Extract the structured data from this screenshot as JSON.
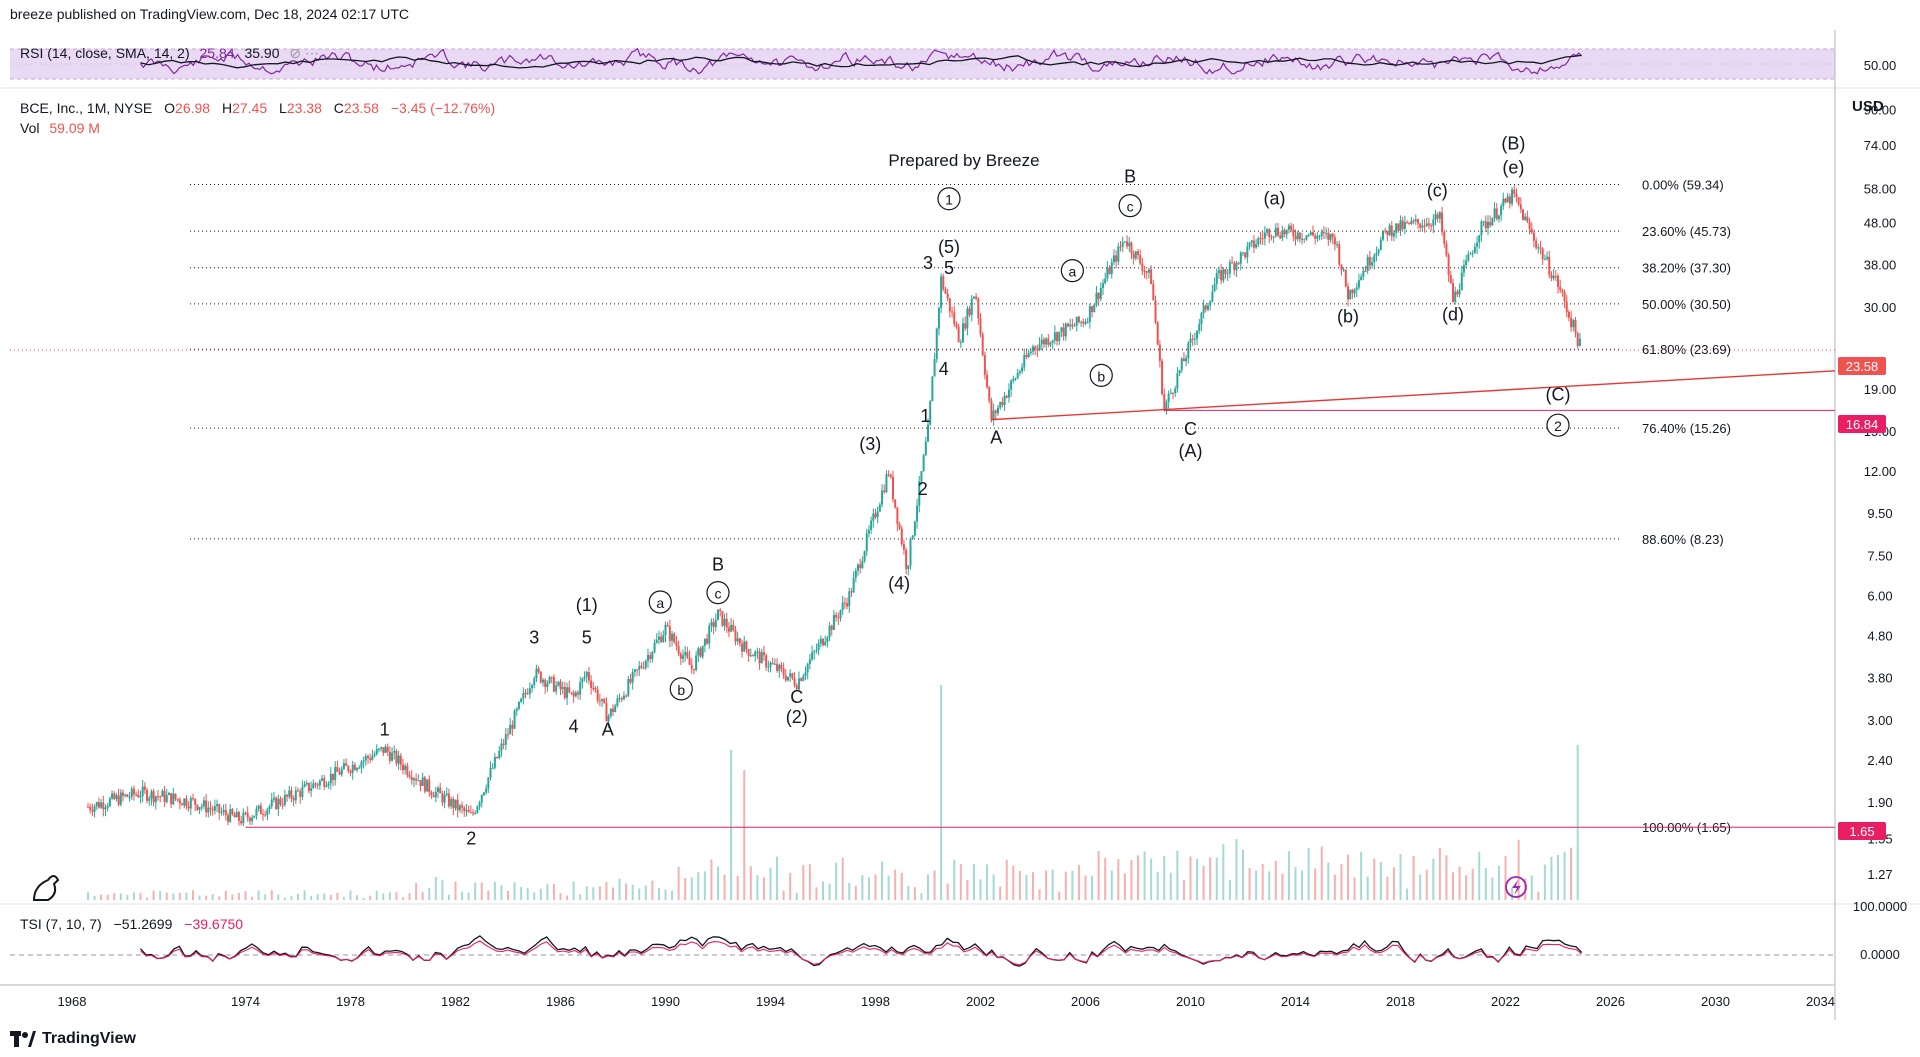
{
  "header": {
    "text": "breeze published on TradingView.com, Dec 18, 2024 02:17 UTC"
  },
  "rsi": {
    "label": "RSI (14, close, SMA, 14, 2)",
    "v1": "25.84",
    "v2": "35.90",
    "axis_label": "50.00",
    "line_color": "#7e2a9c",
    "band_color": "#e9d9f4"
  },
  "main": {
    "symbol": "BCE, Inc., 1M, NYSE",
    "o_label": "O",
    "o_value": "26.98",
    "h_label": "H",
    "h_value": "27.45",
    "l_label": "L",
    "l_value": "23.38",
    "c_label": "C",
    "c_value": "23.58",
    "change": "−3.45 (−12.76%)",
    "vol_label": "Vol",
    "vol_value": "59.09 M",
    "currency": "USD",
    "title_note": "Prepared by Breeze",
    "price_label": "23.58",
    "support_label": "16.84",
    "base_label": "1.65",
    "up_color": "#26a69a",
    "down_color": "#ef5350",
    "trend_color": "#e53935",
    "level_color": "#e91e63"
  },
  "tsi": {
    "label": "TSI (7, 10, 7)",
    "v1": "−51.2699",
    "v2": "−39.6750",
    "axis_top": "100.0000",
    "axis_mid": "0.0000"
  },
  "footer": {
    "brand": "TradingView"
  },
  "chart_data": {
    "type": "line",
    "scale": "log",
    "x_ticks": [
      "1968",
      "1974",
      "1978",
      "1982",
      "1986",
      "1990",
      "1994",
      "1998",
      "2002",
      "2006",
      "2010",
      "2014",
      "2018",
      "2022",
      "2026",
      "2030",
      "2034"
    ],
    "y_ticks": [
      "90.00",
      "74.00",
      "58.00",
      "48.00",
      "38.00",
      "30.00",
      "23.58",
      "19.00",
      "16.84",
      "15.00",
      "12.00",
      "9.50",
      "7.50",
      "6.00",
      "4.80",
      "3.80",
      "3.00",
      "2.40",
      "1.90",
      "1.65",
      "1.55",
      "1.27"
    ],
    "ylim": [
      1.1,
      95
    ],
    "price_path": [
      {
        "x": 1968.0,
        "y": 1.85
      },
      {
        "x": 1970.0,
        "y": 2.0
      },
      {
        "x": 1972.0,
        "y": 1.9
      },
      {
        "x": 1973.8,
        "y": 1.72
      },
      {
        "x": 1976.0,
        "y": 2.0
      },
      {
        "x": 1979.3,
        "y": 2.55
      },
      {
        "x": 1981.0,
        "y": 2.05
      },
      {
        "x": 1982.6,
        "y": 1.75
      },
      {
        "x": 1985.0,
        "y": 3.9
      },
      {
        "x": 1986.5,
        "y": 3.4
      },
      {
        "x": 1987.0,
        "y": 3.9
      },
      {
        "x": 1987.8,
        "y": 3.05
      },
      {
        "x": 1990.0,
        "y": 5.0
      },
      {
        "x": 1991.0,
        "y": 4.0
      },
      {
        "x": 1992.0,
        "y": 5.4
      },
      {
        "x": 1993.0,
        "y": 4.5
      },
      {
        "x": 1995.0,
        "y": 3.7
      },
      {
        "x": 1997.0,
        "y": 6.0
      },
      {
        "x": 1998.5,
        "y": 12.0
      },
      {
        "x": 1999.2,
        "y": 7.0
      },
      {
        "x": 2000.0,
        "y": 15.0
      },
      {
        "x": 2000.5,
        "y": 35.0
      },
      {
        "x": 2001.2,
        "y": 25.0
      },
      {
        "x": 2001.8,
        "y": 33.0
      },
      {
        "x": 2002.4,
        "y": 16.0
      },
      {
        "x": 2004.0,
        "y": 24.0
      },
      {
        "x": 2006.0,
        "y": 28.0
      },
      {
        "x": 2007.5,
        "y": 44.0
      },
      {
        "x": 2008.5,
        "y": 35.0
      },
      {
        "x": 2009.0,
        "y": 17.0
      },
      {
        "x": 2011.0,
        "y": 35.0
      },
      {
        "x": 2013.0,
        "y": 46.0
      },
      {
        "x": 2015.5,
        "y": 44.0
      },
      {
        "x": 2016.0,
        "y": 32.0
      },
      {
        "x": 2017.5,
        "y": 46.0
      },
      {
        "x": 2019.5,
        "y": 49.0
      },
      {
        "x": 2020.0,
        "y": 31.0
      },
      {
        "x": 2021.0,
        "y": 46.0
      },
      {
        "x": 2022.3,
        "y": 56.0
      },
      {
        "x": 2023.0,
        "y": 45.0
      },
      {
        "x": 2024.0,
        "y": 34.0
      },
      {
        "x": 2024.9,
        "y": 23.58
      }
    ],
    "fib_levels": [
      {
        "label": "0.00% (59.34)",
        "y": 59.34
      },
      {
        "label": "23.60% (45.73)",
        "y": 45.73
      },
      {
        "label": "38.20% (37.30)",
        "y": 37.3
      },
      {
        "label": "50.00% (30.50)",
        "y": 30.5
      },
      {
        "label": "61.80% (23.69)",
        "y": 23.69
      },
      {
        "label": "76.40% (15.26)",
        "y": 15.26
      },
      {
        "label": "88.60% (8.23)",
        "y": 8.23
      },
      {
        "label": "100.00% (1.65)",
        "y": 1.65
      }
    ],
    "trendline": [
      {
        "x": 2002.4,
        "y": 16.0
      },
      {
        "x": 2038.0,
        "y": 21.0
      }
    ],
    "wave_labels": [
      {
        "t": "1",
        "x": 1979.3,
        "y": 2.75
      },
      {
        "t": "2",
        "x": 1982.6,
        "y": 1.5
      },
      {
        "t": "3",
        "x": 1985.0,
        "y": 4.6
      },
      {
        "t": "5",
        "x": 1987.0,
        "y": 4.6
      },
      {
        "t": "(1)",
        "x": 1987.0,
        "y": 5.5
      },
      {
        "t": "4",
        "x": 1986.5,
        "y": 2.8
      },
      {
        "t": "A",
        "x": 1987.8,
        "y": 2.75
      },
      {
        "t": "a",
        "x": 1989.8,
        "y": 5.6,
        "circle": true
      },
      {
        "t": "b",
        "x": 1990.6,
        "y": 3.45,
        "circle": true
      },
      {
        "t": "c",
        "x": 1992.0,
        "y": 5.9,
        "circle": true
      },
      {
        "t": "B",
        "x": 1992.0,
        "y": 6.9
      },
      {
        "t": "C",
        "x": 1995.0,
        "y": 3.3
      },
      {
        "t": "(2)",
        "x": 1995.0,
        "y": 2.95
      },
      {
        "t": "(3)",
        "x": 1997.8,
        "y": 13.5
      },
      {
        "t": "(4)",
        "x": 1998.9,
        "y": 6.2
      },
      {
        "t": "1",
        "x": 1999.9,
        "y": 15.8
      },
      {
        "t": "2",
        "x": 1999.8,
        "y": 10.5
      },
      {
        "t": "3",
        "x": 2000.0,
        "y": 37.0
      },
      {
        "t": "(5)",
        "x": 2000.8,
        "y": 40.5
      },
      {
        "t": "5",
        "x": 2000.8,
        "y": 36.0
      },
      {
        "t": "1",
        "x": 2000.8,
        "y": 53.0,
        "circle": true
      },
      {
        "t": "4",
        "x": 2000.6,
        "y": 20.5
      },
      {
        "t": "A",
        "x": 2002.6,
        "y": 14.0
      },
      {
        "t": "a",
        "x": 2005.5,
        "y": 35.5,
        "circle": true
      },
      {
        "t": "b",
        "x": 2006.6,
        "y": 19.8,
        "circle": true
      },
      {
        "t": "c",
        "x": 2007.7,
        "y": 51.0,
        "circle": true
      },
      {
        "t": "B",
        "x": 2007.7,
        "y": 60.0
      },
      {
        "t": "C",
        "x": 2010.0,
        "y": 14.7
      },
      {
        "t": "(A)",
        "x": 2010.0,
        "y": 13.0
      },
      {
        "t": "(a)",
        "x": 2013.2,
        "y": 53.0
      },
      {
        "t": "(b)",
        "x": 2016.0,
        "y": 27.5
      },
      {
        "t": "(c)",
        "x": 2019.4,
        "y": 55.5
      },
      {
        "t": "(d)",
        "x": 2020.0,
        "y": 27.8
      },
      {
        "t": "(B)",
        "x": 2022.3,
        "y": 72.0
      },
      {
        "t": "(e)",
        "x": 2022.3,
        "y": 63.0
      },
      {
        "t": "(C)",
        "x": 2024.0,
        "y": 17.8
      },
      {
        "t": "2",
        "x": 2024.0,
        "y": 15.0,
        "circle": true
      }
    ]
  }
}
